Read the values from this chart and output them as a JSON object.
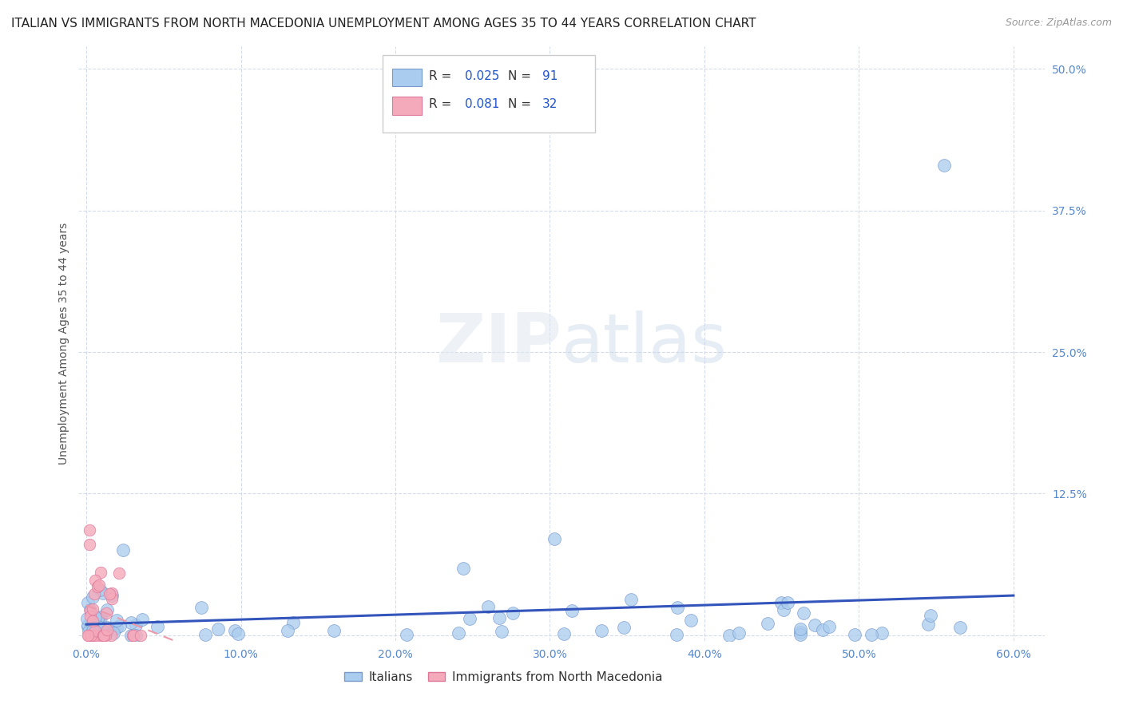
{
  "title": "ITALIAN VS IMMIGRANTS FROM NORTH MACEDONIA UNEMPLOYMENT AMONG AGES 35 TO 44 YEARS CORRELATION CHART",
  "source": "Source: ZipAtlas.com",
  "ylabel": "Unemployment Among Ages 35 to 44 years",
  "xlim": [
    -0.005,
    0.62
  ],
  "ylim": [
    -0.005,
    0.52
  ],
  "xticks": [
    0.0,
    0.1,
    0.2,
    0.3,
    0.4,
    0.5,
    0.6
  ],
  "xticklabels": [
    "0.0%",
    "10.0%",
    "20.0%",
    "30.0%",
    "40.0%",
    "50.0%",
    "60.0%"
  ],
  "yticks": [
    0.0,
    0.125,
    0.25,
    0.375,
    0.5
  ],
  "yticklabels": [
    "",
    "12.5%",
    "25.0%",
    "37.5%",
    "50.0%"
  ],
  "grid_color": "#d0d8e8",
  "background_color": "#ffffff",
  "italian_color": "#aaccee",
  "italian_edge_color": "#7799cc",
  "nmacedonia_color": "#f5aabb",
  "nmacedonia_edge_color": "#dd7799",
  "trendline_italian_color": "#3355bb",
  "trendline_nmacedonia_color": "#ee99aa",
  "title_fontsize": 11,
  "axis_fontsize": 10,
  "tick_fontsize": 10,
  "tick_color": "#5588cc",
  "ylabel_color": "#555555",
  "legend_color": "#2255cc"
}
